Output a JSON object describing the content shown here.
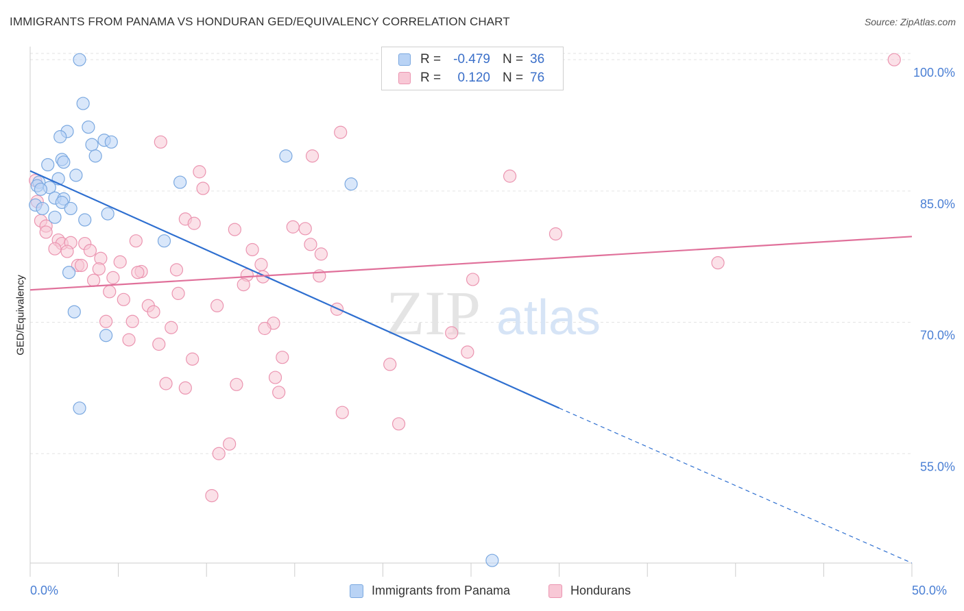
{
  "title": "IMMIGRANTS FROM PANAMA VS HONDURAN GED/EQUIVALENCY CORRELATION CHART",
  "source": "Source: ZipAtlas.com",
  "watermark": {
    "zip": "ZIP",
    "atlas": "atlas"
  },
  "legend": [
    {
      "r_label": "R =",
      "r_value": "-0.479",
      "n_label": "N =",
      "n_value": "36"
    },
    {
      "r_label": "R =",
      "r_value": "0.120",
      "n_label": "N =",
      "n_value": "76"
    }
  ],
  "bottom_legend": [
    "Immigrants from Panama",
    "Hondurans"
  ],
  "x_tick_labels": {
    "left": "0.0%",
    "right": "50.0%"
  },
  "colors": {
    "panama_fill": "#b9d3f5",
    "panama_stroke": "#7aa8e0",
    "panama_line": "#2e6fd0",
    "honduran_fill": "#f8c8d6",
    "honduran_stroke": "#eb94b0",
    "honduran_line": "#e0709a",
    "tick_label": "#4a7fd4",
    "grid": "#e3e3e3"
  },
  "chart_data": {
    "type": "scatter",
    "title": "IMMIGRANTS FROM PANAMA VS HONDURAN GED/EQUIVALENCY CORRELATION CHART",
    "xlabel": "",
    "ylabel": "GED/Equivalency",
    "xlim": [
      0,
      50
    ],
    "ylim": [
      42.5,
      101.5
    ],
    "y_ticks": [
      {
        "value": 100,
        "label": "100.0%"
      },
      {
        "value": 85,
        "label": "85.0%"
      },
      {
        "value": 70,
        "label": "70.0%"
      },
      {
        "value": 55,
        "label": "55.0%"
      }
    ],
    "grid": true,
    "legend_position": "top-center",
    "series": [
      {
        "name": "Immigrants from Panama",
        "color": "#b9d3f5",
        "points": [
          [
            2.8,
            100.0
          ],
          [
            3.0,
            95.0
          ],
          [
            3.3,
            92.3
          ],
          [
            2.1,
            91.8
          ],
          [
            1.7,
            91.2
          ],
          [
            4.2,
            90.8
          ],
          [
            4.6,
            90.6
          ],
          [
            3.5,
            90.3
          ],
          [
            3.7,
            89.0
          ],
          [
            1.8,
            88.6
          ],
          [
            1.9,
            88.3
          ],
          [
            1.0,
            88.0
          ],
          [
            2.6,
            86.8
          ],
          [
            1.6,
            86.4
          ],
          [
            0.5,
            86.0
          ],
          [
            0.4,
            85.6
          ],
          [
            1.1,
            85.4
          ],
          [
            0.6,
            85.2
          ],
          [
            1.4,
            84.2
          ],
          [
            1.9,
            84.1
          ],
          [
            1.8,
            83.7
          ],
          [
            0.3,
            83.4
          ],
          [
            0.7,
            83.0
          ],
          [
            2.3,
            83.0
          ],
          [
            4.4,
            82.4
          ],
          [
            1.4,
            82.0
          ],
          [
            3.1,
            81.7
          ],
          [
            7.6,
            79.3
          ],
          [
            8.5,
            86.0
          ],
          [
            14.5,
            89.0
          ],
          [
            18.2,
            85.8
          ],
          [
            2.2,
            75.7
          ],
          [
            2.5,
            71.2
          ],
          [
            4.3,
            68.5
          ],
          [
            2.8,
            60.2
          ],
          [
            26.2,
            42.8
          ]
        ],
        "trend": {
          "x0": 0,
          "y0": 87.3,
          "x1": 30,
          "y1": 60.2,
          "dashed_to_x": 50,
          "dashed_to_y": 42.5
        }
      },
      {
        "name": "Hondurans",
        "color": "#f8c8d6",
        "points": [
          [
            28.5,
            100.0
          ],
          [
            49.0,
            100.0
          ],
          [
            17.6,
            91.7
          ],
          [
            7.4,
            90.6
          ],
          [
            16.0,
            89.0
          ],
          [
            9.6,
            87.2
          ],
          [
            27.2,
            86.7
          ],
          [
            0.3,
            86.2
          ],
          [
            9.8,
            85.3
          ],
          [
            0.4,
            83.8
          ],
          [
            8.8,
            81.8
          ],
          [
            9.3,
            81.3
          ],
          [
            0.6,
            81.6
          ],
          [
            14.9,
            80.9
          ],
          [
            15.6,
            80.7
          ],
          [
            11.6,
            80.6
          ],
          [
            29.8,
            80.1
          ],
          [
            0.9,
            81.0
          ],
          [
            0.9,
            80.3
          ],
          [
            6.0,
            79.3
          ],
          [
            1.6,
            79.4
          ],
          [
            1.8,
            79.0
          ],
          [
            2.3,
            79.1
          ],
          [
            3.1,
            79.0
          ],
          [
            1.4,
            78.4
          ],
          [
            2.1,
            78.1
          ],
          [
            3.4,
            78.2
          ],
          [
            15.9,
            78.9
          ],
          [
            12.6,
            78.3
          ],
          [
            16.5,
            77.8
          ],
          [
            4.0,
            77.3
          ],
          [
            5.1,
            76.9
          ],
          [
            2.7,
            76.5
          ],
          [
            13.1,
            76.6
          ],
          [
            39.0,
            76.8
          ],
          [
            2.9,
            76.5
          ],
          [
            3.9,
            76.1
          ],
          [
            8.3,
            76.0
          ],
          [
            6.3,
            75.8
          ],
          [
            6.1,
            75.7
          ],
          [
            12.3,
            75.4
          ],
          [
            13.2,
            75.2
          ],
          [
            16.4,
            75.3
          ],
          [
            4.7,
            75.1
          ],
          [
            3.6,
            74.8
          ],
          [
            25.1,
            74.9
          ],
          [
            12.1,
            74.3
          ],
          [
            4.5,
            73.5
          ],
          [
            8.4,
            73.3
          ],
          [
            5.3,
            72.6
          ],
          [
            6.7,
            71.9
          ],
          [
            10.6,
            71.9
          ],
          [
            17.4,
            71.5
          ],
          [
            7.0,
            71.2
          ],
          [
            4.3,
            70.1
          ],
          [
            5.8,
            70.1
          ],
          [
            13.8,
            69.9
          ],
          [
            8.0,
            69.4
          ],
          [
            13.3,
            69.3
          ],
          [
            23.9,
            68.8
          ],
          [
            5.6,
            68.0
          ],
          [
            7.3,
            67.5
          ],
          [
            24.8,
            66.6
          ],
          [
            9.2,
            65.8
          ],
          [
            14.3,
            66.0
          ],
          [
            20.4,
            65.2
          ],
          [
            7.7,
            63.0
          ],
          [
            11.7,
            62.9
          ],
          [
            13.9,
            63.7
          ],
          [
            8.8,
            62.5
          ],
          [
            14.1,
            62.0
          ],
          [
            17.7,
            59.7
          ],
          [
            20.9,
            58.4
          ],
          [
            11.3,
            56.1
          ],
          [
            10.7,
            55.0
          ],
          [
            10.3,
            50.2
          ]
        ],
        "trend": {
          "x0": 0,
          "y0": 73.7,
          "x1": 50,
          "y1": 79.8
        }
      }
    ]
  }
}
